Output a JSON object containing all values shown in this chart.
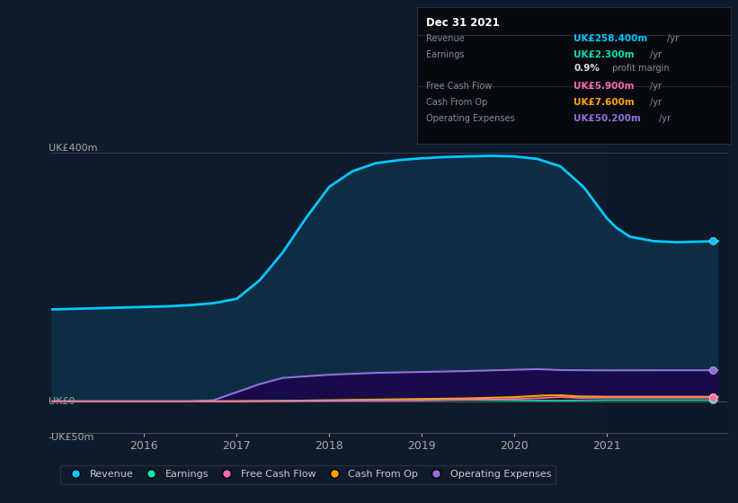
{
  "background_color": "#0d1b2a",
  "plot_bg_color": "#0d1b2a",
  "ylabel_top": "UK£400m",
  "ylabel_zero": "UK£0",
  "ylabel_bottom": "-UK£50m",
  "ylim": [
    -50,
    415
  ],
  "xlim_start": 2015.0,
  "xlim_end": 2022.3,
  "xticks": [
    2016,
    2017,
    2018,
    2019,
    2020,
    2021
  ],
  "series": {
    "Revenue": {
      "color": "#00c8ff",
      "fill_color": "#0d2d45",
      "x": [
        2015.0,
        2015.25,
        2015.5,
        2015.75,
        2016.0,
        2016.25,
        2016.5,
        2016.75,
        2017.0,
        2017.25,
        2017.5,
        2017.75,
        2018.0,
        2018.25,
        2018.5,
        2018.75,
        2019.0,
        2019.25,
        2019.5,
        2019.75,
        2020.0,
        2020.25,
        2020.5,
        2020.75,
        2021.0,
        2021.1,
        2021.25,
        2021.5,
        2021.75,
        2022.0,
        2022.2
      ],
      "y": [
        148,
        149,
        150,
        151,
        152,
        153,
        155,
        158,
        165,
        195,
        240,
        295,
        345,
        370,
        383,
        388,
        391,
        393,
        394,
        395,
        394,
        390,
        378,
        345,
        295,
        280,
        265,
        258,
        256,
        257,
        258
      ]
    },
    "Earnings": {
      "color": "#00e5b0",
      "fill_color": "#003a2a",
      "x": [
        2015.0,
        2016.0,
        2016.5,
        2017.0,
        2017.5,
        2018.0,
        2018.5,
        2019.0,
        2019.5,
        2020.0,
        2020.5,
        2021.0,
        2021.5,
        2022.2
      ],
      "y": [
        0.5,
        0.5,
        0.5,
        0.5,
        1.0,
        1.5,
        2.0,
        2.0,
        2.5,
        2.0,
        1.5,
        2.3,
        2.3,
        2.3
      ]
    },
    "Free Cash Flow": {
      "color": "#ff69b4",
      "fill_color": "#3a0020",
      "x": [
        2015.0,
        2016.0,
        2016.5,
        2017.0,
        2017.5,
        2018.0,
        2018.5,
        2019.0,
        2019.5,
        2020.0,
        2020.3,
        2020.5,
        2020.7,
        2021.0,
        2021.5,
        2022.2
      ],
      "y": [
        0.2,
        0.2,
        0.2,
        0.2,
        0.5,
        1.0,
        1.5,
        2.0,
        3.0,
        4.0,
        5.5,
        7.0,
        5.5,
        5.9,
        5.9,
        5.9
      ]
    },
    "Cash From Op": {
      "color": "#ffa500",
      "fill_color": "#3a2000",
      "x": [
        2015.0,
        2016.0,
        2016.5,
        2017.0,
        2017.5,
        2018.0,
        2018.5,
        2019.0,
        2019.5,
        2020.0,
        2020.3,
        2020.5,
        2020.7,
        2021.0,
        2021.5,
        2022.2
      ],
      "y": [
        0.3,
        0.3,
        0.3,
        0.5,
        1.0,
        2.0,
        3.0,
        4.0,
        5.0,
        7.0,
        9.5,
        10.0,
        8.0,
        7.6,
        7.6,
        7.6
      ]
    },
    "Operating Expenses": {
      "color": "#9370db",
      "fill_color": "#1a0a4a",
      "x": [
        2015.0,
        2016.0,
        2016.5,
        2016.75,
        2017.0,
        2017.25,
        2017.5,
        2018.0,
        2018.5,
        2019.0,
        2019.5,
        2020.0,
        2020.25,
        2020.5,
        2021.0,
        2021.5,
        2022.2
      ],
      "y": [
        0.0,
        0.0,
        0.0,
        2.0,
        15.0,
        28.0,
        38.0,
        43.0,
        46.0,
        47.5,
        49.0,
        51.0,
        52.0,
        50.5,
        50.0,
        50.2,
        50.2
      ]
    }
  },
  "shaded_right_start": 2021.0,
  "dot_x": 2022.15,
  "tooltip": {
    "title": "Dec 31 2021",
    "rows": [
      {
        "label": "Revenue",
        "value": "UK£258.400m",
        "unit": "/yr",
        "color": "#00c8ff",
        "sep_after": false
      },
      {
        "label": "Earnings",
        "value": "UK£2.300m",
        "unit": "/yr",
        "color": "#00e5b0",
        "sep_after": false
      },
      {
        "label": "",
        "value": "0.9%",
        "unit": " profit margin",
        "color": "#dddddd",
        "sep_after": true
      },
      {
        "label": "Free Cash Flow",
        "value": "UK£5.900m",
        "unit": "/yr",
        "color": "#ff69b4",
        "sep_after": false
      },
      {
        "label": "Cash From Op",
        "value": "UK£7.600m",
        "unit": "/yr",
        "color": "#ffa500",
        "sep_after": false
      },
      {
        "label": "Operating Expenses",
        "value": "UK£50.200m",
        "unit": "/yr",
        "color": "#9370db",
        "sep_after": false
      }
    ]
  },
  "legend_items": [
    {
      "label": "Revenue",
      "color": "#00c8ff"
    },
    {
      "label": "Earnings",
      "color": "#00e5b0"
    },
    {
      "label": "Free Cash Flow",
      "color": "#ff69b4"
    },
    {
      "label": "Cash From Op",
      "color": "#ffa500"
    },
    {
      "label": "Operating Expenses",
      "color": "#9370db"
    }
  ]
}
